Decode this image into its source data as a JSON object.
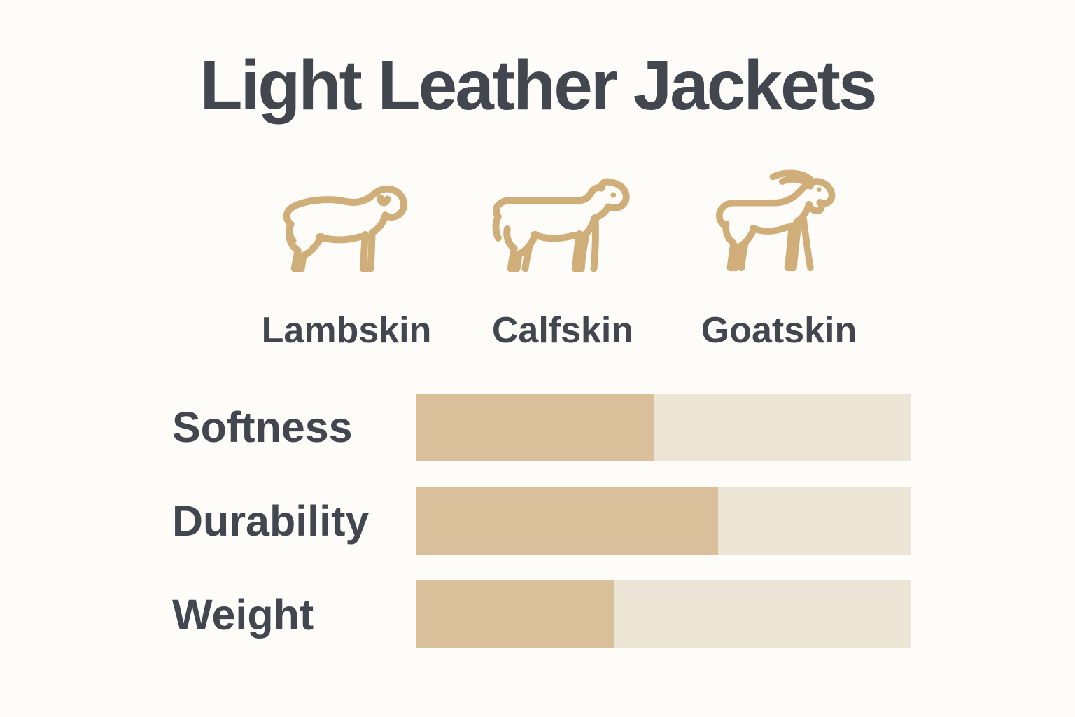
{
  "title": "Light Leather Jackets",
  "colors": {
    "background": "#fdfcf8",
    "text": "#42464f",
    "icon_stroke": "#d0ae7a",
    "bar_fill": "#d9c09b",
    "bar_track": "#ece4d5"
  },
  "leathers": [
    {
      "label": "Lambskin",
      "icon": "lamb-icon"
    },
    {
      "label": "Calfskin",
      "icon": "calf-icon"
    },
    {
      "label": "Goatskin",
      "icon": "goat-icon"
    }
  ],
  "chart_data": {
    "type": "bar",
    "orientation": "horizontal",
    "title": "Light Leather Jackets",
    "categories": [
      "Softness",
      "Durability",
      "Weight"
    ],
    "values": [
      48,
      61,
      40
    ],
    "value_unit": "percent of bar filled",
    "value_range": [
      0,
      100
    ],
    "grid": false,
    "legend": false,
    "axes_hidden": true
  }
}
